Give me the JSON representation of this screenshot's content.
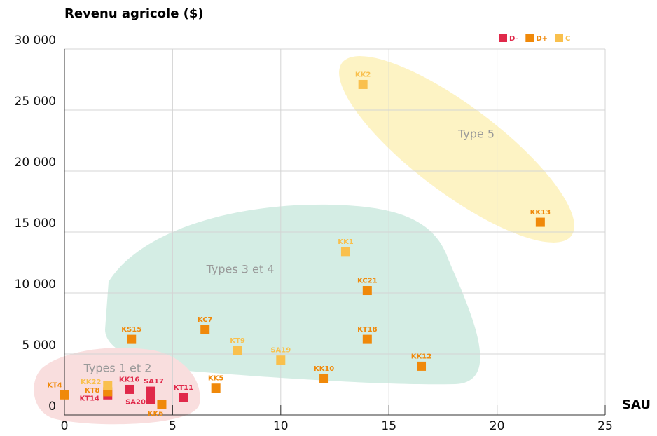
{
  "chart_data": {
    "type": "scatter",
    "y_label": "Revenu agricole ($)",
    "x_label": "SAU",
    "xlim": [
      0,
      25
    ],
    "xticks": [
      0,
      5,
      10,
      15,
      20,
      25
    ],
    "ylim": [
      0,
      30000
    ],
    "yticks": [
      0,
      {
        "value": 5000,
        "label": "5 000"
      },
      {
        "value": 10000,
        "label": "10 000"
      },
      {
        "value": 15000,
        "label": "15 000"
      },
      {
        "value": 20000,
        "label": "20 000"
      },
      {
        "value": 25000,
        "label": "25 000"
      },
      {
        "value": 30000,
        "label": "30 000"
      }
    ],
    "grid": true,
    "legend": "top-right",
    "annotations": [
      "Type 5",
      "Types 3 et 4",
      "Types 1 et 2"
    ],
    "series": [
      {
        "name": "D–",
        "color": "#e0294a",
        "labels": [
          "KK16",
          "SA17",
          "SA20",
          "KT14",
          "KT11"
        ],
        "x": [
          3,
          4,
          4,
          2,
          5.5
        ],
        "values": [
          2100,
          1950,
          1250,
          1650,
          1430
        ]
      },
      {
        "name": "D+",
        "color": "#f0890a",
        "labels": [
          "KT4",
          "KT8",
          "KK6",
          "KS15",
          "KC7",
          "KK5",
          "KK10",
          "KT18",
          "KC21",
          "KK12",
          "KK13"
        ],
        "x": [
          0,
          2,
          4.5,
          3.1,
          6.5,
          7,
          12,
          14,
          14,
          16.5,
          22
        ],
        "values": [
          1650,
          1900,
          860,
          6200,
          7000,
          2200,
          3000,
          6200,
          10200,
          4000,
          15800
        ]
      },
      {
        "name": "C",
        "color": "#f9c04d",
        "labels": [
          "KK22",
          "KT9",
          "SA19",
          "KK1",
          "KK2"
        ],
        "x": [
          2,
          8,
          10,
          13,
          13.8
        ],
        "values": [
          2400,
          5300,
          4500,
          13400,
          27100
        ]
      }
    ]
  }
}
